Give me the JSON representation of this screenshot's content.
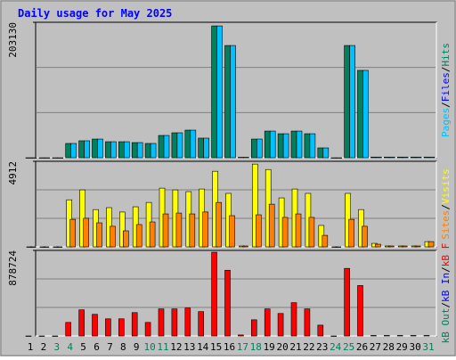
{
  "chart_data": {
    "type": "bar",
    "title": "Daily usage for May 2025",
    "separator": "/",
    "categories": [
      "1",
      "2",
      "3",
      "4",
      "5",
      "6",
      "7",
      "8",
      "9",
      "10",
      "11",
      "12",
      "13",
      "14",
      "15",
      "16",
      "17",
      "18",
      "19",
      "20",
      "21",
      "22",
      "23",
      "24",
      "25",
      "26",
      "27",
      "28",
      "29",
      "30",
      "31"
    ],
    "weekend_color": "#00805c",
    "weekends": [
      false,
      false,
      true,
      true,
      false,
      false,
      false,
      false,
      false,
      true,
      true,
      false,
      false,
      false,
      false,
      false,
      true,
      true,
      false,
      false,
      false,
      false,
      false,
      true,
      true,
      false,
      false,
      false,
      false,
      false,
      true
    ],
    "panels": [
      {
        "ylim": [
          0,
          203130
        ],
        "yticks": [
          203130
        ],
        "series": [
          {
            "name": "Hits",
            "color": "#00805c",
            "values": [
              0,
              0,
              0,
              21400,
              25400,
              28000,
              24000,
              24000,
              22700,
              21400,
              33400,
              37400,
              41400,
              29400,
              197700,
              168300,
              700,
              28000,
              40000,
              36000,
              40000,
              36000,
              14700,
              0,
              168300,
              131000,
              1000,
              1000,
              1000,
              1000,
              1000
            ]
          },
          {
            "name": "Files",
            "color": "#0000ff",
            "values": [
              null,
              null,
              null,
              null,
              null,
              null,
              null,
              null,
              null,
              null,
              null,
              null,
              null,
              null,
              null,
              null,
              null,
              null,
              null,
              null,
              null,
              null,
              null,
              null,
              null,
              null,
              null,
              null,
              null,
              null,
              null
            ]
          },
          {
            "name": "Pages",
            "color": "#00c0ff",
            "values": [
              0,
              0,
              0,
              21400,
              25400,
              28000,
              24000,
              24000,
              22700,
              21400,
              33400,
              37400,
              41400,
              29400,
              197700,
              168300,
              700,
              28000,
              40000,
              36000,
              40000,
              36000,
              14700,
              0,
              168300,
              131000,
              1000,
              1000,
              1000,
              1000,
              1000
            ]
          }
        ]
      },
      {
        "ylim": [
          0,
          4912
        ],
        "yticks": [
          4912
        ],
        "series": [
          {
            "name": "Visits",
            "color": "#ffff00",
            "values": [
              0,
              0,
              0,
              2700,
              3270,
              2140,
              2250,
              2000,
              2300,
              2550,
              3370,
              3270,
              3170,
              3320,
              4340,
              3070,
              50,
              4750,
              4440,
              2810,
              3320,
              3070,
              1230,
              0,
              3070,
              2140,
              200,
              50,
              50,
              50,
              300
            ]
          },
          {
            "name": "Sites",
            "color": "#ff8000",
            "values": [
              0,
              0,
              0,
              1580,
              1640,
              1380,
              1180,
              920,
              1280,
              1430,
              1890,
              1940,
              1890,
              2000,
              2550,
              1790,
              50,
              1840,
              2450,
              1690,
              1890,
              1690,
              660,
              0,
              1580,
              1180,
              150,
              50,
              50,
              50,
              300
            ]
          }
        ]
      },
      {
        "ylim": [
          0,
          878724
        ],
        "yticks": [
          878724
        ],
        "series": [
          {
            "name": "kB F",
            "color": "#ff0000",
            "values": [
              0,
              0,
              0,
              139000,
              268000,
              222000,
              176000,
              176000,
              240000,
              139000,
              278000,
              278000,
              287000,
              250000,
              860000,
              675000,
              10000,
              166000,
              278000,
              231000,
              342000,
              278000,
              111000,
              0,
              694000,
              518000,
              5000,
              5000,
              5000,
              5000,
              5000
            ]
          },
          {
            "name": "kB In",
            "color": "#0000ff",
            "values": [
              null,
              null,
              null,
              null,
              null,
              null,
              null,
              null,
              null,
              null,
              null,
              null,
              null,
              null,
              null,
              null,
              null,
              null,
              null,
              null,
              null,
              null,
              null,
              null,
              null,
              null,
              null,
              null,
              null,
              null,
              null
            ]
          },
          {
            "name": "kB Out",
            "color": "#00805c",
            "values": [
              null,
              null,
              null,
              null,
              null,
              null,
              null,
              null,
              null,
              null,
              null,
              null,
              null,
              null,
              null,
              null,
              null,
              null,
              null,
              null,
              null,
              null,
              null,
              null,
              null,
              null,
              null,
              null,
              null,
              null,
              null
            ]
          }
        ]
      }
    ]
  }
}
